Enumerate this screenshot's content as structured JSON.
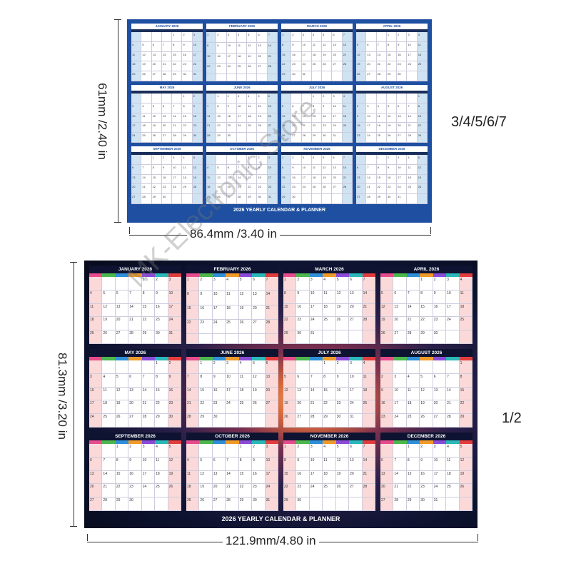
{
  "blue_poster": {
    "title": "2026 YEARLY CALENDAR & PLANNER",
    "months": [
      "JANUARY 2026",
      "FEBRUARY 2026",
      "MARCH 2026",
      "APRIL 2026",
      "MAY 2026",
      "JUNE 2026",
      "JULY 2026",
      "AUGUST 2026",
      "SEPTEMBER 2026",
      "OCTOBER 2026",
      "NOVEMBER 2026",
      "DECEMBER 2026"
    ],
    "height_label": "61mm  /2.40 in",
    "width_label": "86.4mm  /3.40 in",
    "sizes_label": "3/4/5/6/7",
    "accent_color": "#1e4fa0"
  },
  "space_poster": {
    "title": "2026 YEARLY CALENDAR & PLANNER",
    "months": [
      "JANUARY 2026",
      "FEBRUARY 2026",
      "MARCH 2026",
      "APRIL 2026",
      "MAY 2026",
      "JUNE 2026",
      "JULY 2026",
      "AUGUST 2026",
      "SEPTEMBER 2026",
      "OCTOBER 2026",
      "NOVEMBER 2026",
      "DECEMBER 2026"
    ],
    "height_label": "81.3mm  /3.20 in",
    "width_label": "121.9mm/4.80 in",
    "sizes_label": "1/2",
    "weekday_colors": [
      "#e64c8c",
      "#4cb84c",
      "#2f8fd8",
      "#f09a2a",
      "#8a4cd8",
      "#2ab8b8",
      "#e23c3c"
    ]
  },
  "watermark": "MK-Electronic Store"
}
